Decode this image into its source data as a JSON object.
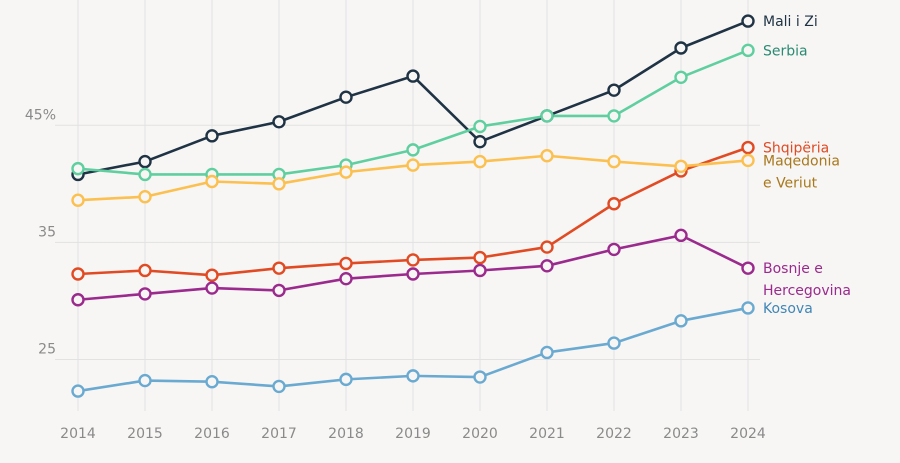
{
  "chart_data": {
    "type": "line",
    "title": "",
    "xlabel": "",
    "ylabel": "",
    "x": [
      "2014",
      "2015",
      "2016",
      "2017",
      "2018",
      "2019",
      "2020",
      "2021",
      "2022",
      "2023",
      "2024"
    ],
    "ylim": [
      20.6,
      55.7
    ],
    "y_ticks": [
      {
        "value": 25,
        "label": "25"
      },
      {
        "value": 35,
        "label": "35"
      },
      {
        "value": 45,
        "label": "45%"
      }
    ],
    "grid": {
      "vertical": true,
      "horizontal": true
    },
    "legend": "inline-right",
    "series": [
      {
        "name": "Mali i Zi",
        "label_lines": [
          "Mali i Zi"
        ],
        "color": "#1f3344",
        "label_color": "#1f3344",
        "values": [
          40.8,
          41.9,
          44.1,
          45.3,
          47.4,
          49.2,
          43.6,
          45.8,
          48.0,
          51.6,
          53.9
        ]
      },
      {
        "name": "Serbia",
        "label_lines": [
          "Serbia"
        ],
        "color": "#5fcf9f",
        "label_color": "#2a8a72",
        "values": [
          41.3,
          40.8,
          40.8,
          40.8,
          41.6,
          42.9,
          44.9,
          45.8,
          45.8,
          49.1,
          51.4
        ]
      },
      {
        "name": "Shqipëria",
        "label_lines": [
          "Shqipëria"
        ],
        "color": "#e14b23",
        "label_color": "#e14b23",
        "values": [
          32.3,
          32.6,
          32.2,
          32.8,
          33.2,
          33.5,
          33.7,
          34.6,
          38.3,
          41.1,
          43.1
        ]
      },
      {
        "name": "Maqedonia e Veriut",
        "label_lines": [
          "Maqedonia",
          "e Veriut"
        ],
        "color": "#fbc04f",
        "label_color": "#a9781c",
        "values": [
          38.6,
          38.9,
          40.2,
          40.0,
          41.0,
          41.6,
          41.9,
          42.4,
          41.9,
          41.5,
          42.0
        ]
      },
      {
        "name": "Bosnje e Hercegovina",
        "label_lines": [
          "Bosnje e",
          "Hercegovina"
        ],
        "color": "#9b2a8d",
        "label_color": "#9b2a8d",
        "values": [
          30.1,
          30.6,
          31.1,
          30.9,
          31.9,
          32.3,
          32.6,
          33.0,
          34.4,
          35.6,
          32.8
        ]
      },
      {
        "name": "Kosova",
        "label_lines": [
          "Kosova"
        ],
        "color": "#6aaad1",
        "label_color": "#3f86b6",
        "values": [
          22.3,
          23.2,
          23.1,
          22.7,
          23.3,
          23.6,
          23.5,
          25.6,
          26.4,
          28.3,
          29.4
        ]
      }
    ]
  }
}
